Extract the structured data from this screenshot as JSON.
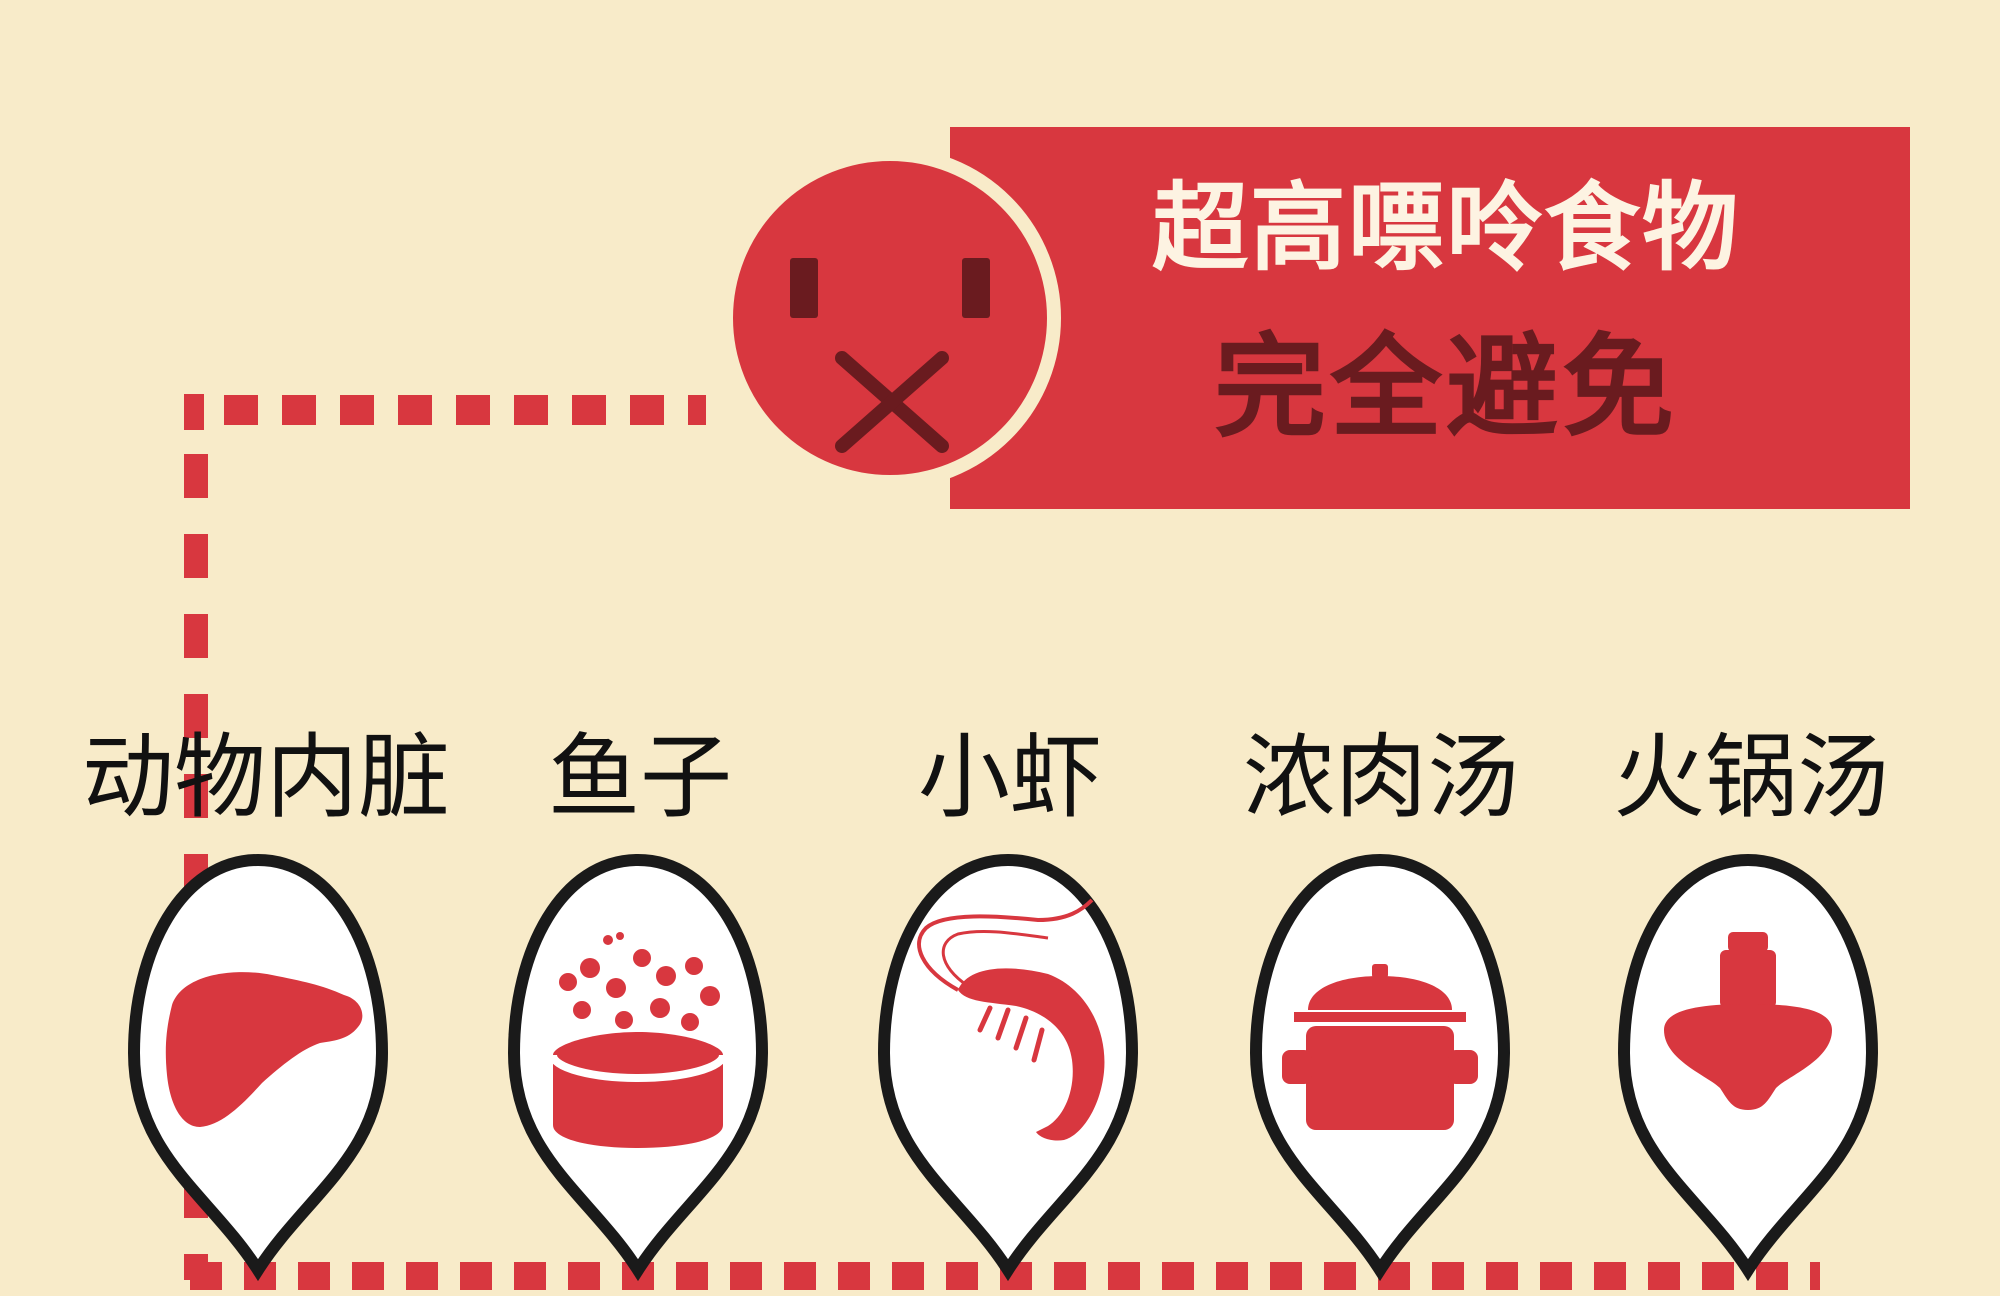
{
  "colors": {
    "background": "#f8ebc9",
    "accent_red": "#d8373f",
    "dark_red": "#6a1b1f",
    "pin_outline": "#1a1a1a",
    "pin_fill": "#ffffff"
  },
  "title": {
    "line1": "超高嘌呤食物",
    "line2": "完全避免"
  },
  "face_icon": "no-eating-face-icon",
  "foods": [
    {
      "label": "动物内脏",
      "icon": "liver-icon"
    },
    {
      "label": "鱼子",
      "icon": "fish-roe-icon"
    },
    {
      "label": "小虾",
      "icon": "shrimp-icon"
    },
    {
      "label": "浓肉汤",
      "icon": "soup-pot-icon"
    },
    {
      "label": "火锅汤",
      "icon": "hot-pot-icon"
    }
  ]
}
